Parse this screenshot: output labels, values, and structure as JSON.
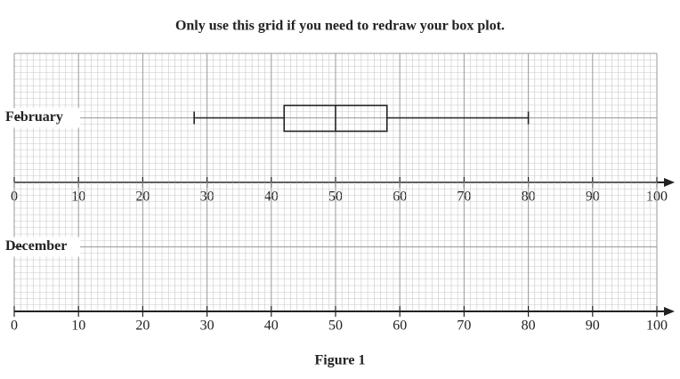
{
  "chart_data": {
    "type": "box",
    "title": "Only use this grid if you need to redraw your box plot.",
    "caption": "Figure 1",
    "categories": [
      "February",
      "December"
    ],
    "boxes": [
      {
        "min": 28,
        "q1": 42,
        "median": 50,
        "q3": 58,
        "max": 80
      },
      null
    ],
    "color": "#222222",
    "xlim": [
      0,
      100
    ],
    "xticks": [
      0,
      10,
      20,
      30,
      40,
      50,
      60,
      70,
      80,
      90,
      100
    ],
    "grid": true
  }
}
